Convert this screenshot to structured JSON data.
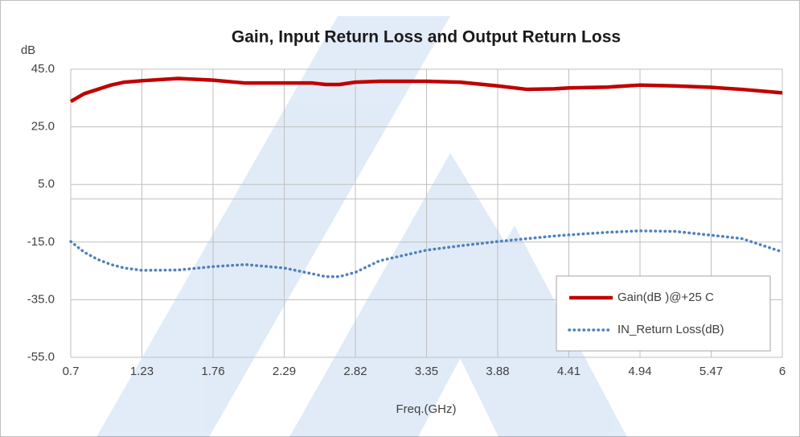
{
  "chart_data": {
    "type": "line",
    "title": "Gain, Input Return Loss and Output Return Loss",
    "ylabel": "dB",
    "xlabel": "Freq.(GHz)",
    "x": [
      0.7,
      0.8,
      0.9,
      1.0,
      1.1,
      1.23,
      1.5,
      1.76,
      2.0,
      2.29,
      2.5,
      2.6,
      2.7,
      2.82,
      3.0,
      3.35,
      3.6,
      3.88,
      4.1,
      4.3,
      4.41,
      4.7,
      4.94,
      5.2,
      5.47,
      5.7,
      6.0
    ],
    "series": [
      {
        "name": "Gain(dB )@+25 C",
        "color": "#c00000",
        "style": "solid",
        "values": [
          33.8,
          36.5,
          38,
          39.5,
          40.5,
          41,
          41.8,
          41.2,
          40.2,
          40.2,
          40.2,
          39.7,
          39.7,
          40.5,
          40.8,
          40.8,
          40.5,
          39.2,
          38,
          38.2,
          38.5,
          38.8,
          39.5,
          39.2,
          38.7,
          38,
          36.8
        ]
      },
      {
        "name": "IN_Return Loss(dB)",
        "color": "#4f81bd",
        "style": "dotted",
        "values": [
          -14.8,
          -18.5,
          -21,
          -22.8,
          -24,
          -24.8,
          -24.7,
          -23.5,
          -22.8,
          -24,
          -26,
          -27,
          -27,
          -25.5,
          -21.5,
          -17.8,
          -16.3,
          -14.8,
          -13.8,
          -12.9,
          -12.5,
          -11.6,
          -11.1,
          -11.3,
          -12.6,
          -13.8,
          -18.4
        ]
      }
    ],
    "xlim": [
      0.7,
      6
    ],
    "xticks": [
      0.7,
      1.23,
      1.76,
      2.29,
      2.82,
      3.35,
      3.88,
      4.41,
      4.94,
      5.47,
      6
    ],
    "ylim": [
      -55,
      45
    ],
    "yticks": [
      {
        "value": 45,
        "label": "45.0"
      },
      {
        "value": 25,
        "label": "25.0"
      },
      {
        "value": 5,
        "label": "5.0"
      },
      {
        "value": -15,
        "label": "-15.0"
      },
      {
        "value": -35,
        "label": "-35.0"
      },
      {
        "value": -55,
        "label": "-55.0"
      }
    ],
    "grid": true,
    "legend": "lower right"
  }
}
